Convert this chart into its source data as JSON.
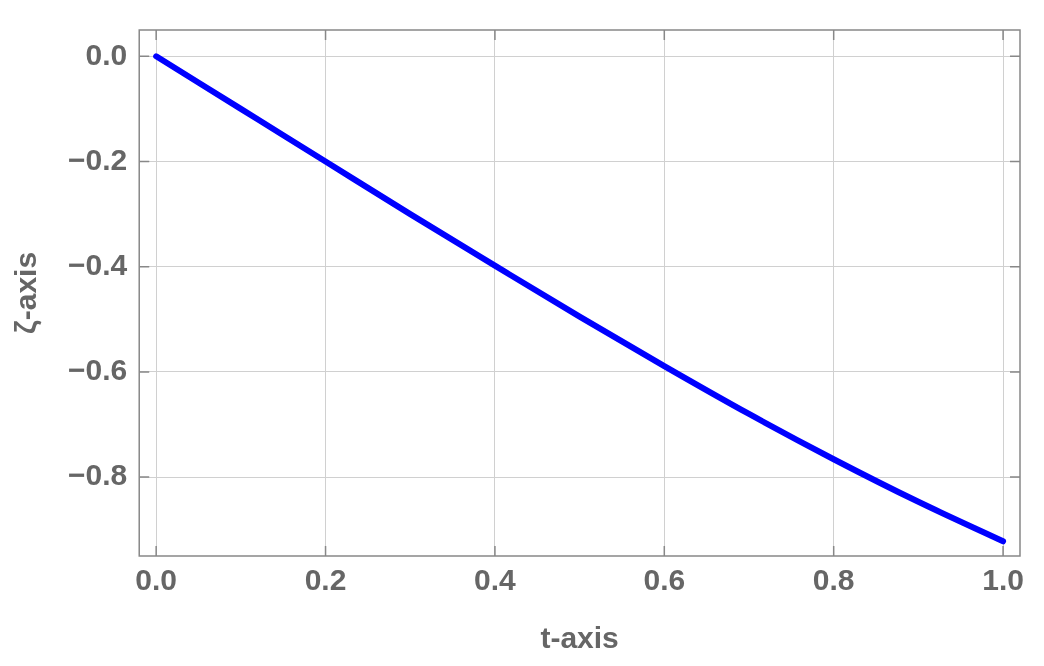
{
  "chart_data": {
    "type": "line",
    "xlabel": "t‐axis",
    "ylabel": "ζ‐axis",
    "x": [
      0,
      0.1,
      0.2,
      0.3,
      0.4,
      0.5,
      0.6,
      0.7,
      0.8,
      0.9,
      1
    ],
    "series": [
      {
        "color": "#0000ff",
        "values": [
          0,
          -0.1,
          -0.2,
          -0.3,
          -0.398,
          -0.495,
          -0.589,
          -0.68,
          -0.766,
          -0.847,
          -0.922
        ]
      }
    ],
    "xlim": [
      -0.02,
      1.02
    ],
    "ylim": [
      -0.95,
      0.05
    ],
    "xticks": [
      {
        "value": 0,
        "label": "0.0"
      },
      {
        "value": 0.2,
        "label": "0.2"
      },
      {
        "value": 0.4,
        "label": "0.4"
      },
      {
        "value": 0.6,
        "label": "0.6"
      },
      {
        "value": 0.8,
        "label": "0.8"
      },
      {
        "value": 1,
        "label": "1.0"
      }
    ],
    "yticks": [
      {
        "value": 0,
        "label": "0.0"
      },
      {
        "value": -0.2,
        "label": "−0.2"
      },
      {
        "value": -0.4,
        "label": "−0.4"
      },
      {
        "value": -0.6,
        "label": "−0.6"
      },
      {
        "value": -0.8,
        "label": "−0.8"
      }
    ],
    "grid": true,
    "marker": "none",
    "line_style": "solid",
    "legend": false
  }
}
